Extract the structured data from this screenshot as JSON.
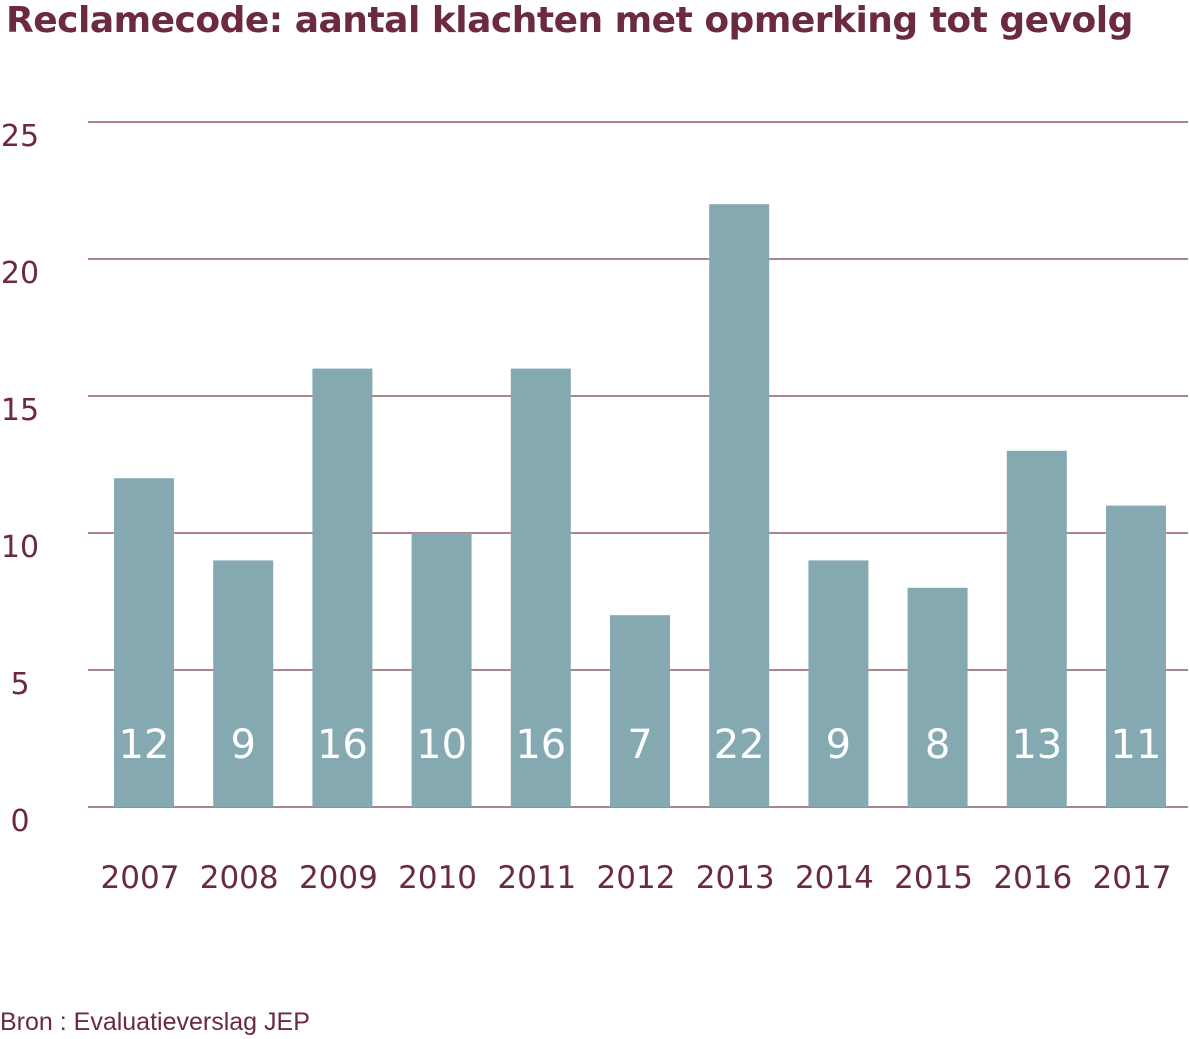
{
  "chart_data": {
    "type": "bar",
    "title": "Reclamecode: aantal klachten met opmerking tot gevolg",
    "source": "Bron : Evaluatieverslag JEP",
    "xlabel": "",
    "ylabel": "",
    "categories": [
      "2007",
      "2008",
      "2009",
      "2010",
      "2011",
      "2012",
      "2013",
      "2014",
      "2015",
      "2016",
      "2017"
    ],
    "values": [
      12,
      9,
      16,
      10,
      16,
      7,
      22,
      9,
      8,
      13,
      11
    ],
    "data_labels": [
      "12",
      "9",
      "16",
      "10",
      "16",
      "7",
      "22",
      "9",
      "8",
      "13",
      "11"
    ],
    "ylim": [
      0,
      25
    ],
    "yticks": [
      0,
      5,
      10,
      15,
      20,
      25
    ],
    "ytick_labels": [
      "0",
      "5",
      "10",
      "15",
      "20",
      "25"
    ],
    "grid": true,
    "legend": "none",
    "colors": {
      "bar": "#84a9b0",
      "text": "#6b2a3e",
      "grid": "#7d3e52",
      "data_label": "#ffffff"
    }
  }
}
